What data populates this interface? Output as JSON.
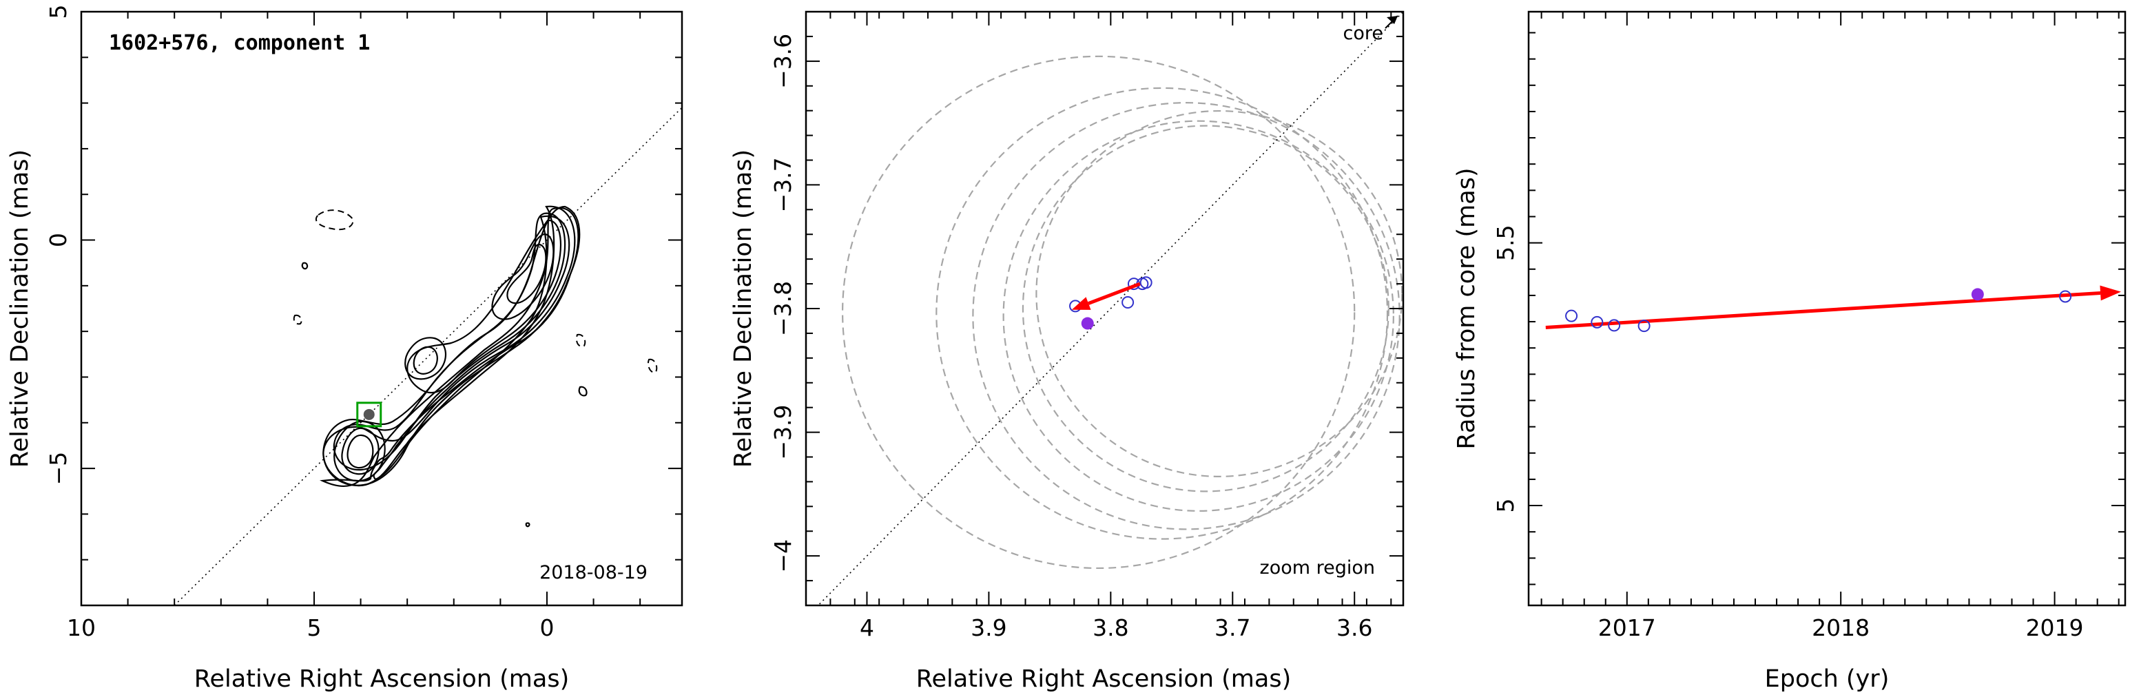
{
  "chart_data": [
    {
      "type": "scatter",
      "panel": "map",
      "title": "1602+576, component 1",
      "date_label": "2018-08-19",
      "xlabel": "Relative Right Ascension (mas)",
      "ylabel": "Relative Declination (mas)",
      "xlim": [
        10,
        -2.9
      ],
      "ylim": [
        -8,
        5
      ],
      "x_ticks": [
        10,
        5,
        0
      ],
      "y_ticks": [
        5,
        0,
        -5
      ],
      "x_ticklabels": [
        "10",
        "5",
        "0"
      ],
      "y_ticklabels": [
        "5",
        "0",
        "−5"
      ],
      "component_position": {
        "x": 3.82,
        "y": -3.82
      },
      "ridge_line": {
        "x": [
          8.0,
          -2.9
        ],
        "y": [
          -8.0,
          2.9
        ]
      },
      "colors": {
        "contour": "#000000",
        "box": "#00a000",
        "component": "#555555"
      }
    },
    {
      "type": "scatter",
      "panel": "zoom",
      "xlabel": "Relative Right Ascension (mas)",
      "ylabel": "Relative Declination (mas)",
      "xlim": [
        4.05,
        3.56
      ],
      "ylim": [
        -4.04,
        -3.56
      ],
      "x_ticks": [
        4.0,
        3.9,
        3.8,
        3.7,
        3.6
      ],
      "y_ticks": [
        -3.6,
        -3.7,
        -3.8,
        -3.9,
        -4.0
      ],
      "x_ticklabels": [
        "4",
        "3.9",
        "3.8",
        "3.7",
        "3.6"
      ],
      "y_ticklabels": [
        "−3.6",
        "−3.7",
        "−3.8",
        "−3.9",
        "−4"
      ],
      "annotations": {
        "core": "core",
        "zoom_region": "zoom region"
      },
      "series": [
        {
          "values": [
            {
              "x": 3.829,
              "y": -3.798
            },
            {
              "x": 3.786,
              "y": -3.795
            },
            {
              "x": 3.781,
              "y": -3.78
            },
            {
              "x": 3.774,
              "y": -3.78
            },
            {
              "x": 3.771,
              "y": -3.779
            }
          ],
          "marker": "open-circle",
          "color": "#3333cc"
        },
        {
          "values": [
            {
              "x": 3.819,
              "y": -3.812
            }
          ],
          "marker": "filled-circle",
          "color": "#8a2be2"
        }
      ],
      "error_circles": [
        {
          "x": 3.81,
          "y": -3.803,
          "r": 0.21
        },
        {
          "x": 3.758,
          "y": -3.804,
          "r": 0.185
        },
        {
          "x": 3.738,
          "y": -3.806,
          "r": 0.175
        },
        {
          "x": 3.728,
          "y": -3.806,
          "r": 0.16
        },
        {
          "x": 3.722,
          "y": -3.8,
          "r": 0.15
        },
        {
          "x": 3.711,
          "y": -3.788,
          "r": 0.15
        }
      ],
      "motion_vector": {
        "from": {
          "x": 3.776,
          "y": -3.78
        },
        "to": {
          "x": 3.832,
          "y": -3.801
        },
        "color": "#ff0000"
      },
      "ridge_line": {
        "x": [
          4.05,
          3.56
        ],
        "y": [
          -4.05,
          -3.56
        ]
      }
    },
    {
      "type": "scatter",
      "panel": "radius",
      "xlabel": "Epoch (yr)",
      "ylabel": "Radius from core (mas)",
      "xlim": [
        2016.54,
        2019.33
      ],
      "ylim": [
        4.81,
        5.94
      ],
      "x_ticks": [
        2017,
        2018,
        2019
      ],
      "y_ticks": [
        5,
        5.5
      ],
      "x_ticklabels": [
        "2017",
        "2018",
        "2019"
      ],
      "y_ticklabels": [
        "5",
        "5.5"
      ],
      "series": [
        {
          "values": [
            {
              "x": 2016.74,
              "y": 5.361
            },
            {
              "x": 2016.86,
              "y": 5.349
            },
            {
              "x": 2016.94,
              "y": 5.343
            },
            {
              "x": 2017.08,
              "y": 5.342
            },
            {
              "x": 2019.05,
              "y": 5.398
            }
          ],
          "marker": "open-circle",
          "color": "#3333cc"
        },
        {
          "values": [
            {
              "x": 2018.64,
              "y": 5.402
            }
          ],
          "marker": "filled-circle",
          "color": "#8a2be2"
        }
      ],
      "fit_line": {
        "x": [
          2016.62,
          2019.33
        ],
        "y": [
          5.339,
          5.407
        ],
        "color": "#ff0000"
      }
    }
  ]
}
